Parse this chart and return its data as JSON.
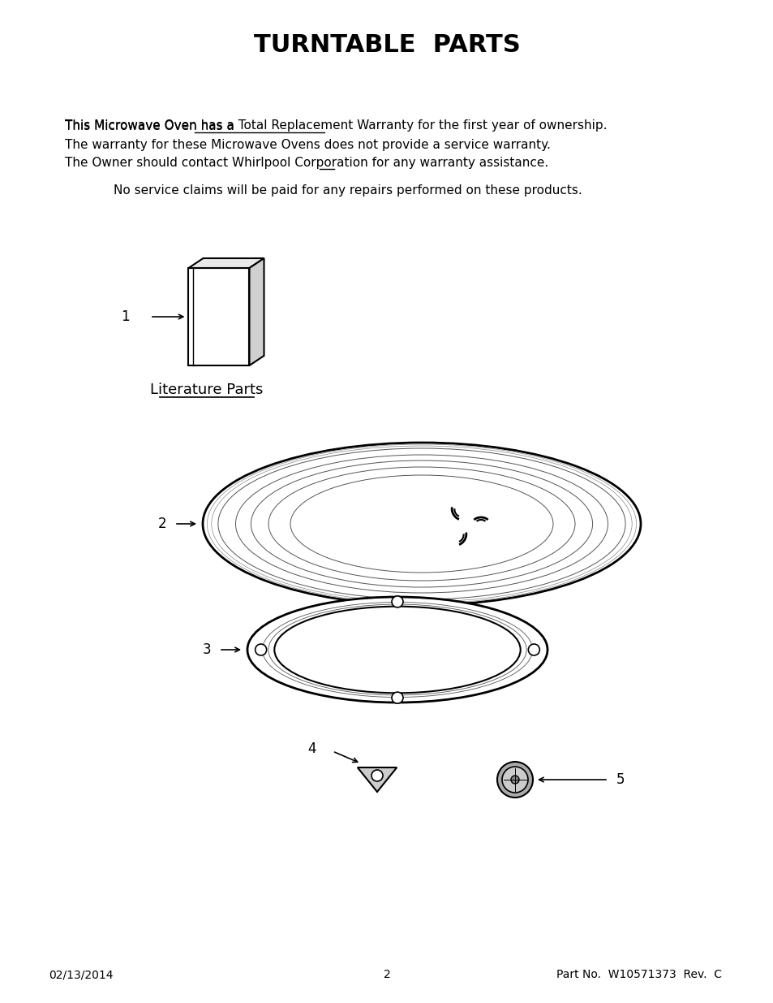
{
  "title": "TURNTABLE  PARTS",
  "bg_color": "#ffffff",
  "text_color": "#000000",
  "warranty_line1": "This Microwave Oven has a Total Replacement Warranty for the first year of ownership.",
  "warranty_line1_plain_start": "This Microwave Oven has a ",
  "warranty_line1_underlined": "Total Replacement Warranty",
  "warranty_line1_plain_end": " for the first year of ownership.",
  "warranty_line2": "The warranty for these Microwave Ovens does not provide a service warranty.",
  "warranty_line3": "The Owner should contact Whirlpool Corporation for any warranty assistance.",
  "warranty_line3_plain_start": "The Owner should contact Whirlpool Corporation for ",
  "warranty_line3_underlined": "any",
  "warranty_line3_plain_end": " warranty assistance.",
  "service_line": "No service claims will be paid for any repairs performed on these products.",
  "footer_left": "02/13/2014",
  "footer_center": "2",
  "footer_right": "Part No.  W10571373  Rev.  C",
  "label_literature": "Literature Parts"
}
